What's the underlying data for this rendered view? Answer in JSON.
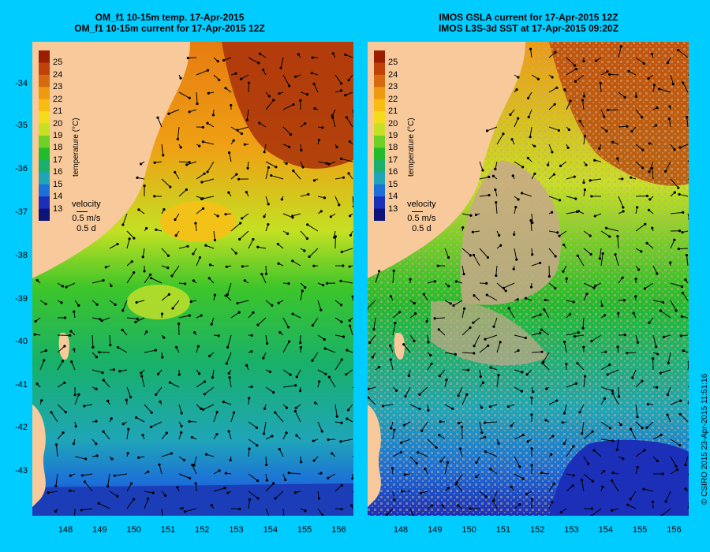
{
  "left_panel": {
    "title_line1": "OM_f1 10-15m temp. 17-Apr-2015",
    "title_line2": "OM_f1 10-15m current for 17-Apr-2015 12Z",
    "y_ticks": [
      "-34",
      "-35",
      "-36",
      "-37",
      "-38",
      "-39",
      "-40",
      "-41",
      "-42",
      "-43"
    ],
    "x_ticks": [
      "148",
      "149",
      "150",
      "151",
      "152",
      "153",
      "154",
      "155",
      "156"
    ]
  },
  "right_panel": {
    "title_line1": "IMOS GSLA current for 17-Apr-2015 12Z",
    "title_line2": "IMOS L3S-3d SST at 17-Apr-2015 09:20Z",
    "x_ticks": [
      "148",
      "149",
      "150",
      "151",
      "152",
      "153",
      "154",
      "155",
      "156"
    ]
  },
  "colorbar": {
    "ticks": [
      "25",
      "24",
      "23",
      "22",
      "21",
      "20",
      "19",
      "18",
      "17",
      "16",
      "15",
      "14",
      "13"
    ],
    "label": "temperature (°C)",
    "colors": [
      "#9b1e00",
      "#c0420a",
      "#d66a10",
      "#ee9a10",
      "#f7bd12",
      "#f2dc1c",
      "#c7e023",
      "#6ecf24",
      "#22bb2b",
      "#18b06a",
      "#1fa5b8",
      "#1c70d8",
      "#1c2fb8",
      "#0c1478"
    ]
  },
  "velocity_key": {
    "title": "velocity",
    "speed": "0.5 m/s",
    "time": "0.5 d"
  },
  "copyright": "© CSIRO 2015   23-Apr-2015 11:51:16",
  "colors": {
    "background": "#00ccff",
    "land": "#f8c99a",
    "missing_data": "#c8a88a"
  }
}
